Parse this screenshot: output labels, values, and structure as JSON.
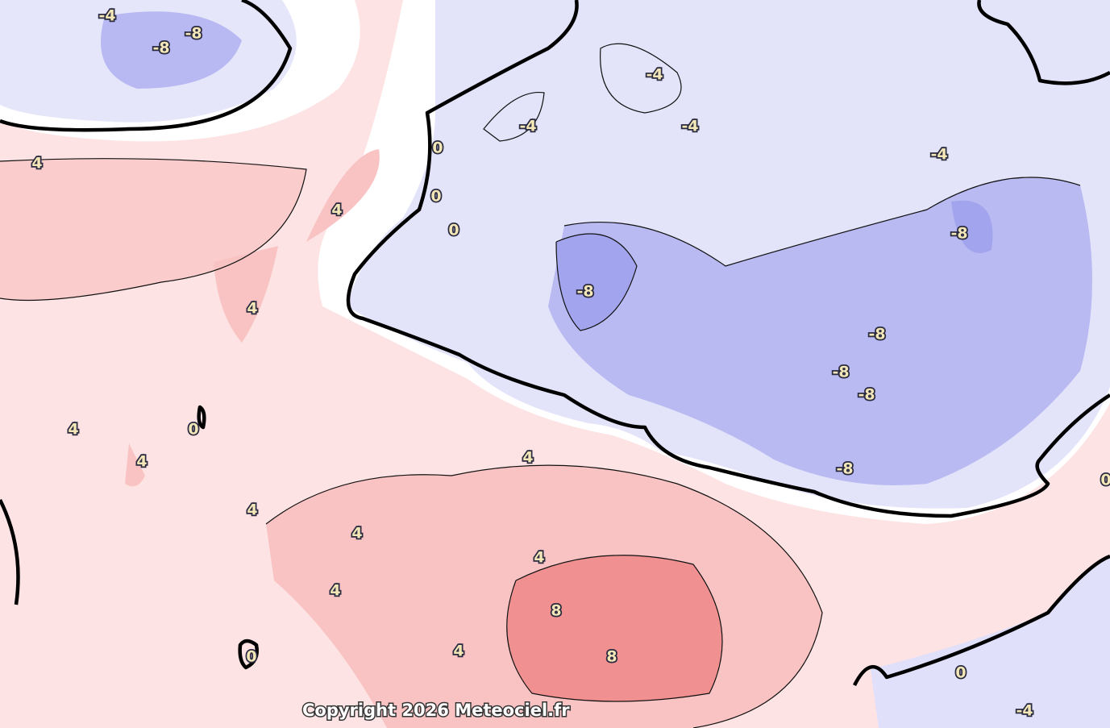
{
  "contour_labels": [
    "-4",
    "-8",
    "-8",
    "4",
    "0",
    "0",
    "0",
    "4",
    "4",
    "-4",
    "-4",
    "-4",
    "-4",
    "-8",
    "-8",
    "-8",
    "-8",
    "-8",
    "-8",
    "4",
    "0",
    "4",
    "4",
    "4",
    "4",
    "4",
    "4",
    "8",
    "8",
    "4",
    "0",
    "0",
    "-4",
    "0"
  ],
  "copyright": "Copyright 2026 Meteociel.fr"
}
